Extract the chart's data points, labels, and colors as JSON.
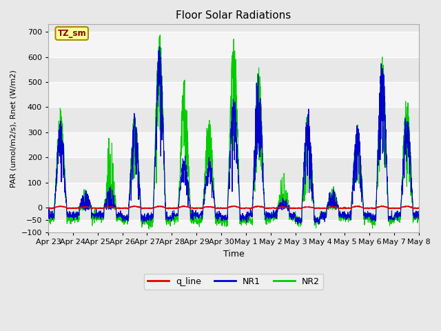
{
  "title": "Floor Solar Radiations",
  "xlabel": "Time",
  "ylabel": "PAR (umol/m2/s), Rnet (W/m2)",
  "ylim": [
    -100,
    730
  ],
  "yticks": [
    -100,
    -50,
    0,
    100,
    200,
    300,
    400,
    500,
    600,
    700
  ],
  "annotation": "TZ_sm",
  "legend_entries": [
    "q_line",
    "NR1",
    "NR2"
  ],
  "legend_colors": [
    "#dd0000",
    "#0000cc",
    "#00cc00"
  ],
  "line_colors_plot": [
    "#dd0000",
    "#0000cc",
    "#00cc00"
  ],
  "bg_color": "#e8e8e8",
  "plot_bg_color": "#e8e8e8",
  "grid_color": "#ffffff",
  "n_days": 15,
  "points_per_day": 144,
  "tick_labels": [
    "Apr 23",
    "Apr 24",
    "Apr 25",
    "Apr 26",
    "Apr 27",
    "Apr 28",
    "Apr 29",
    "Apr 30",
    "May 1",
    "May 2",
    "May 3",
    "May 4",
    "May 5",
    "May 6",
    "May 7",
    "May 8"
  ]
}
